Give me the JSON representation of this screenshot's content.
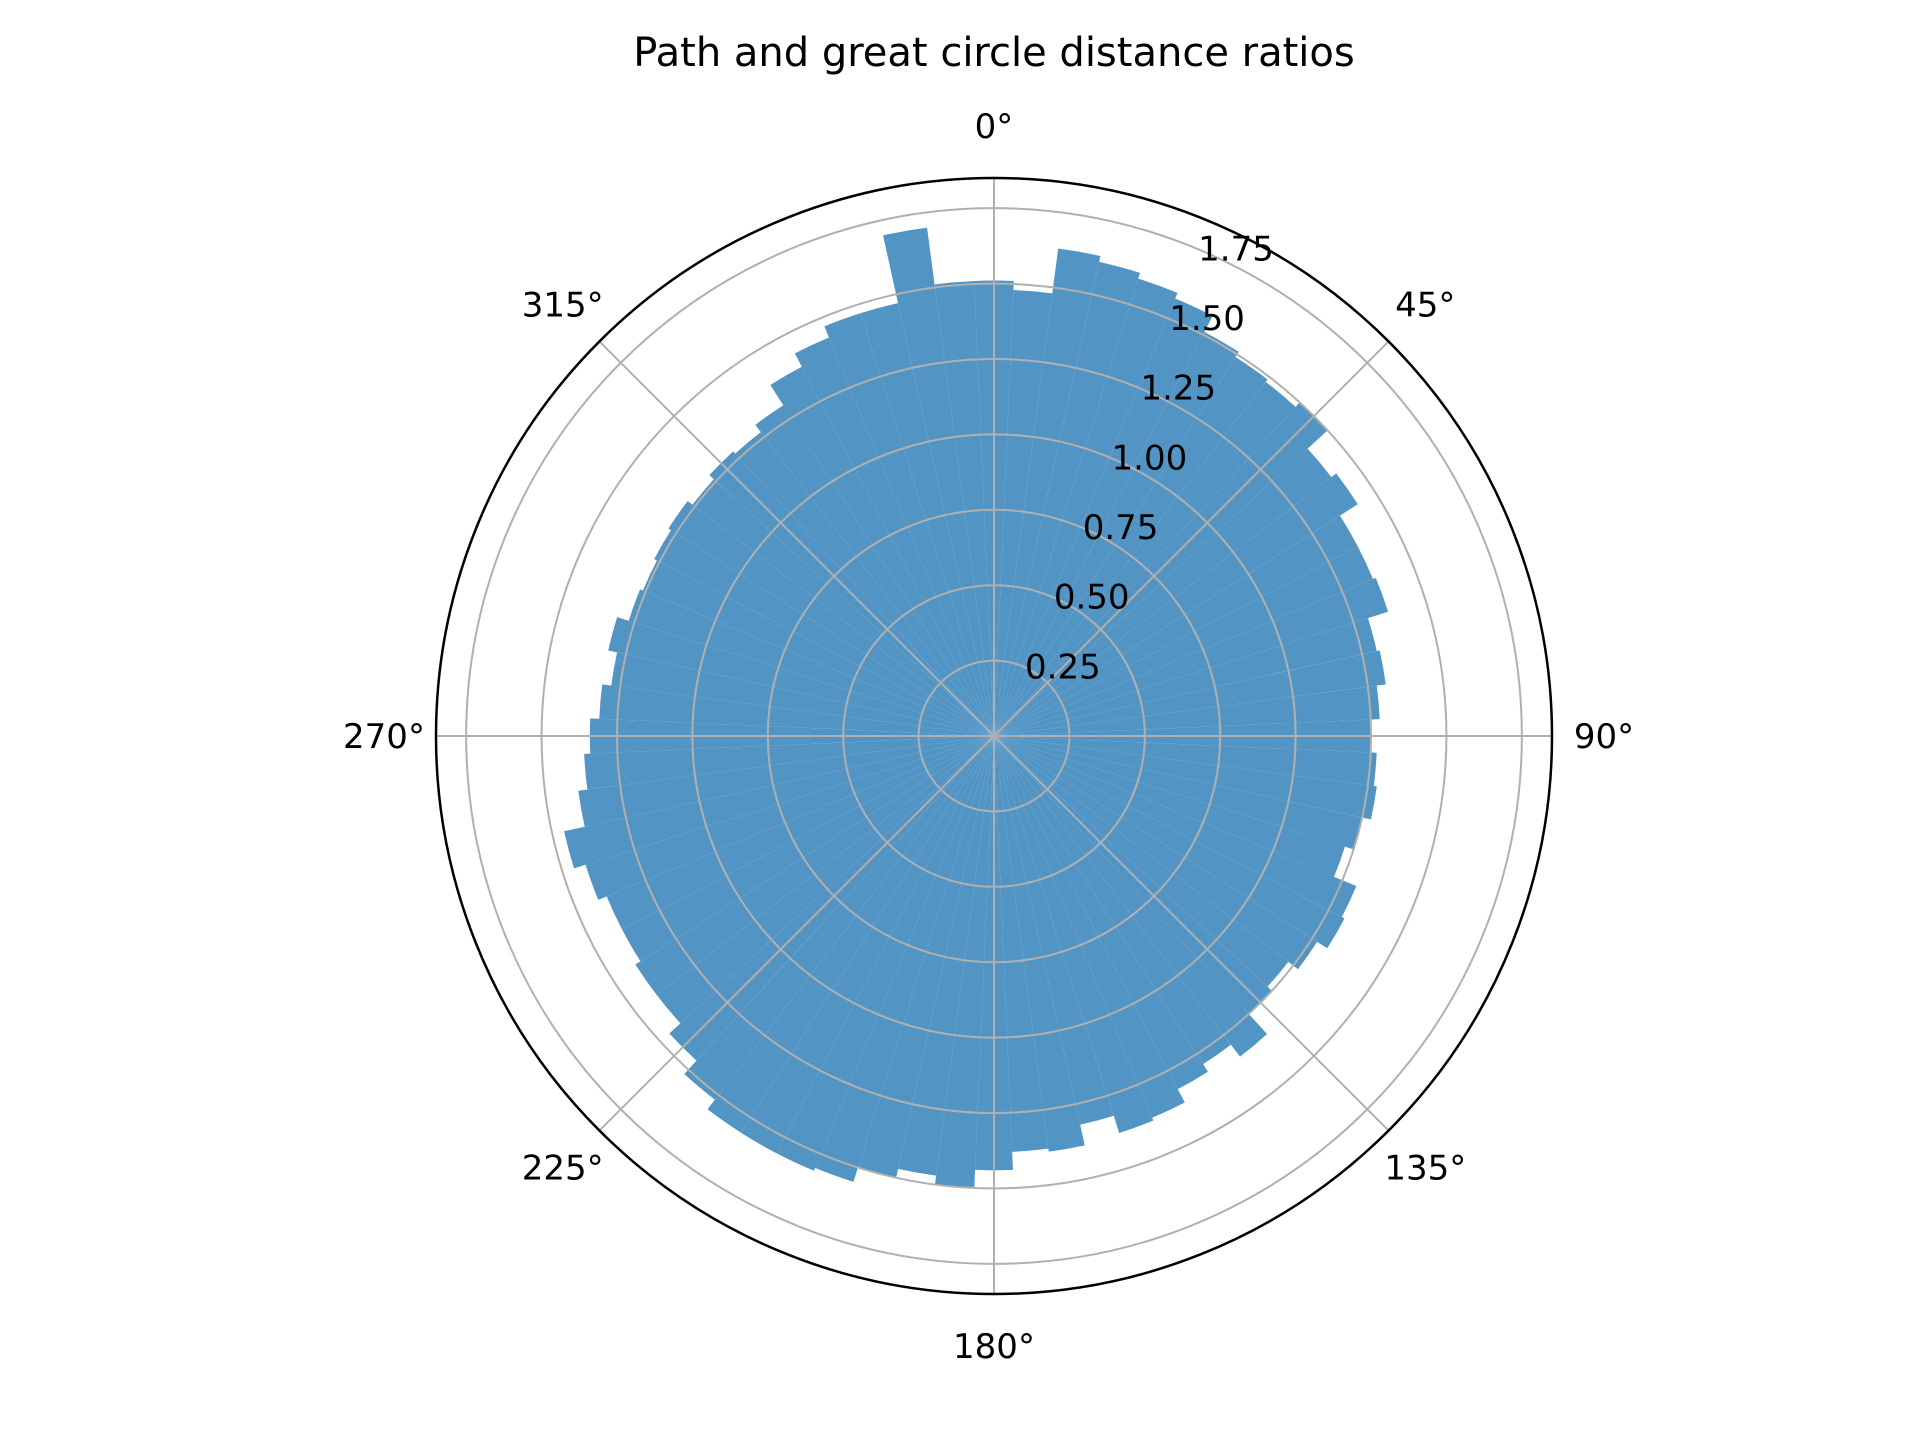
{
  "chart_data": {
    "type": "bar",
    "projection": "polar",
    "title": "Path and great circle distance ratios",
    "theta_zero_location": "N",
    "theta_direction": "clockwise",
    "theta_ticks": [
      "0°",
      "45°",
      "90°",
      "135°",
      "180°",
      "225°",
      "270°",
      "315°"
    ],
    "theta_tick_values_deg": [
      0,
      45,
      90,
      135,
      180,
      225,
      270,
      315
    ],
    "r_ticks": [
      "0.25",
      "0.50",
      "0.75",
      "1.00",
      "1.25",
      "1.50",
      "1.75"
    ],
    "r_tick_values": [
      0.25,
      0.5,
      0.75,
      1.0,
      1.25,
      1.5,
      1.75
    ],
    "r_label_angle_deg": 22.5,
    "ylim": [
      0,
      1.85
    ],
    "grid": true,
    "bar_color": "#4c92c3",
    "bin_count": 72,
    "bin_width_deg": 5,
    "values": [
      1.51,
      1.48,
      1.63,
      1.61,
      1.59,
      1.57,
      1.51,
      1.49,
      1.48,
      1.5,
      1.41,
      1.43,
      1.36,
      1.36,
      1.37,
      1.3,
      1.31,
      1.28,
      1.25,
      1.27,
      1.28,
      1.25,
      1.22,
      1.3,
      1.31,
      1.27,
      1.23,
      1.25,
      1.34,
      1.29,
      1.32,
      1.37,
      1.38,
      1.32,
      1.39,
      1.38,
      1.44,
      1.5,
      1.47,
      1.5,
      1.55,
      1.56,
      1.56,
      1.56,
      1.52,
      1.46,
      1.41,
      1.41,
      1.39,
      1.39,
      1.42,
      1.46,
      1.39,
      1.36,
      1.34,
      1.31,
      1.28,
      1.31,
      1.27,
      1.26,
      1.27,
      1.28,
      1.26,
      1.28,
      1.27,
      1.3,
      1.38,
      1.43,
      1.47,
      1.47,
      1.7,
      1.51
    ]
  }
}
